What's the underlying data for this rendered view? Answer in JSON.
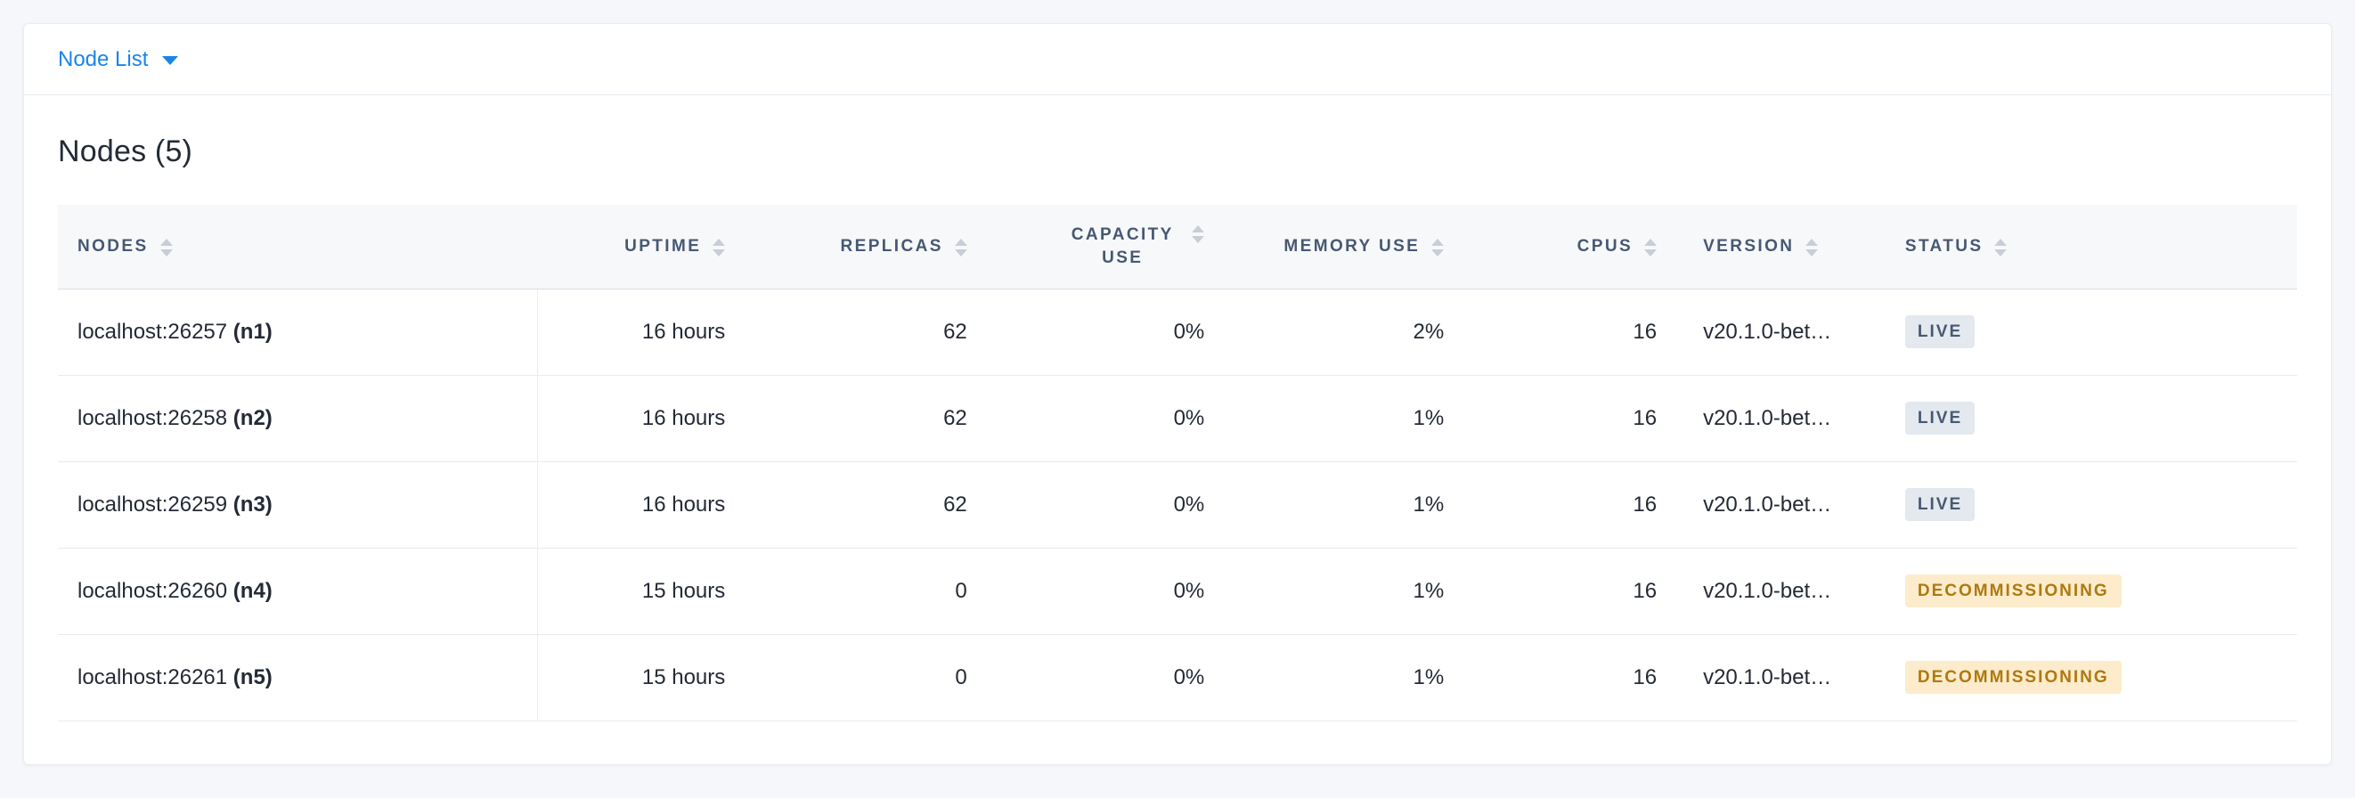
{
  "header": {
    "dropdown_label": "Node List"
  },
  "main": {
    "title": "Nodes (5)"
  },
  "table": {
    "columns": [
      {
        "key": "nodes",
        "label": "NODES",
        "align": "left",
        "width": "21.4%",
        "sortable": true
      },
      {
        "key": "uptime",
        "label": "UPTIME",
        "align": "right",
        "width": "9.2%",
        "sortable": true
      },
      {
        "key": "replicas",
        "label": "REPLICAS",
        "align": "right",
        "width": "10.8%",
        "sortable": true
      },
      {
        "key": "capacity-use",
        "label": "CAPACITY USE",
        "align": "right",
        "width": "10.6%",
        "sortable": true,
        "wrap": true
      },
      {
        "key": "memory-use",
        "label": "MEMORY USE",
        "align": "right",
        "width": "10.7%",
        "sortable": true
      },
      {
        "key": "cpus",
        "label": "CPUS",
        "align": "right",
        "width": "9.5%",
        "sortable": true
      },
      {
        "key": "version",
        "label": "VERSION",
        "align": "left",
        "width": "9.5%",
        "sortable": true
      },
      {
        "key": "status",
        "label": "STATUS",
        "align": "left",
        "width": "18.3%",
        "sortable": true
      }
    ],
    "rows": [
      {
        "address": "localhost:26257",
        "node_id": "(n1)",
        "uptime": "16 hours",
        "replicas": "62",
        "capacity_use": "0%",
        "memory_use": "2%",
        "cpus": "16",
        "version": "v20.1.0-bet…",
        "status": "LIVE",
        "status_kind": "live"
      },
      {
        "address": "localhost:26258",
        "node_id": "(n2)",
        "uptime": "16 hours",
        "replicas": "62",
        "capacity_use": "0%",
        "memory_use": "1%",
        "cpus": "16",
        "version": "v20.1.0-bet…",
        "status": "LIVE",
        "status_kind": "live"
      },
      {
        "address": "localhost:26259",
        "node_id": "(n3)",
        "uptime": "16 hours",
        "replicas": "62",
        "capacity_use": "0%",
        "memory_use": "1%",
        "cpus": "16",
        "version": "v20.1.0-bet…",
        "status": "LIVE",
        "status_kind": "live"
      },
      {
        "address": "localhost:26260",
        "node_id": "(n4)",
        "uptime": "15 hours",
        "replicas": "0",
        "capacity_use": "0%",
        "memory_use": "1%",
        "cpus": "16",
        "version": "v20.1.0-bet…",
        "status": "DECOMMISSIONING",
        "status_kind": "decommissioning"
      },
      {
        "address": "localhost:26261",
        "node_id": "(n5)",
        "uptime": "15 hours",
        "replicas": "0",
        "capacity_use": "0%",
        "memory_use": "1%",
        "cpus": "16",
        "version": "v20.1.0-bet…",
        "status": "DECOMMISSIONING",
        "status_kind": "decommissioning"
      }
    ]
  },
  "colors": {
    "accent_blue": "#1a85e8",
    "badges": {
      "live": {
        "bg": "#e4e9ef",
        "text": "#475872"
      },
      "decommissioning": {
        "bg": "#fceccb",
        "text": "#b07810"
      }
    }
  }
}
